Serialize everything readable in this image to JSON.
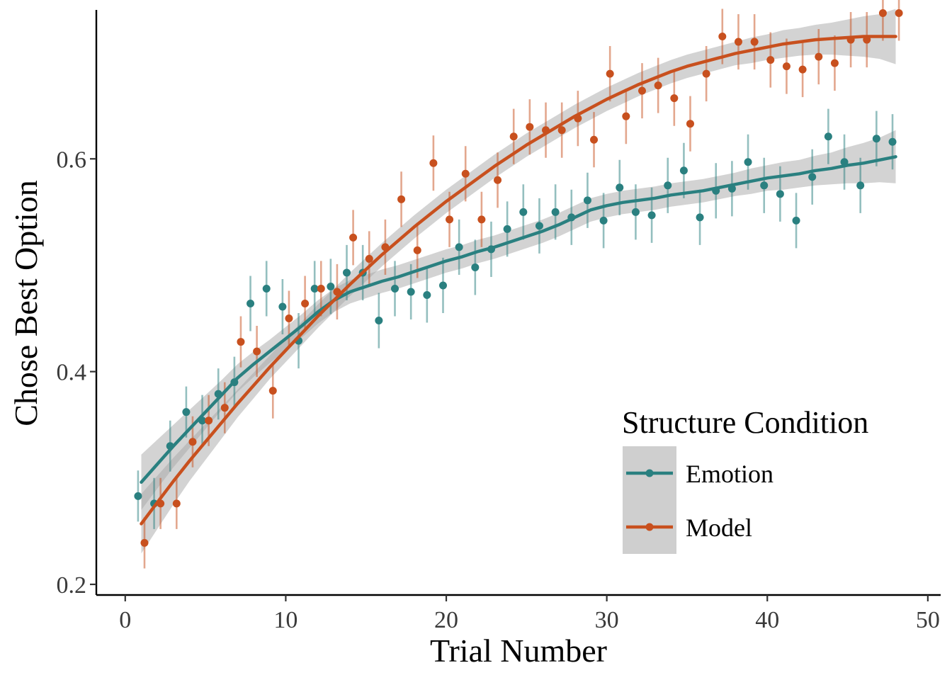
{
  "chart_data": {
    "type": "scatter",
    "title": "",
    "xlabel": "Trial Number",
    "ylabel": "Chose Best Option",
    "xlim": [
      -1.8,
      50.8
    ],
    "ylim": [
      0.19,
      0.74
    ],
    "x_ticks": [
      0,
      10,
      20,
      30,
      40,
      50
    ],
    "x_tick_labels": [
      "0",
      "10",
      "20",
      "30",
      "40",
      "50"
    ],
    "y_ticks": [
      0.2,
      0.4,
      0.6
    ],
    "y_tick_labels": [
      "0.2",
      "0.4",
      "0.6"
    ],
    "grid": false,
    "legend": {
      "title": "Structure Condition",
      "position": "bottom-right"
    },
    "series": [
      {
        "name": "Emotion",
        "color": "#2a8080",
        "x": [
          1,
          2,
          3,
          4,
          5,
          6,
          7,
          8,
          9,
          10,
          11,
          12,
          13,
          14,
          15,
          16,
          17,
          18,
          19,
          20,
          21,
          22,
          23,
          24,
          25,
          26,
          27,
          28,
          29,
          30,
          31,
          32,
          33,
          34,
          35,
          36,
          37,
          38,
          39,
          40,
          41,
          42,
          43,
          44,
          45,
          46,
          47,
          48
        ],
        "y": [
          0.283,
          0.276,
          0.33,
          0.362,
          0.354,
          0.379,
          0.39,
          0.464,
          0.478,
          0.461,
          0.429,
          0.478,
          0.48,
          0.493,
          0.493,
          0.448,
          0.478,
          0.475,
          0.472,
          0.481,
          0.517,
          0.498,
          0.515,
          0.534,
          0.55,
          0.537,
          0.55,
          0.545,
          0.561,
          0.542,
          0.573,
          0.55,
          0.547,
          0.575,
          0.589,
          0.545,
          0.57,
          0.572,
          0.597,
          0.575,
          0.567,
          0.542,
          0.583,
          0.621,
          0.597,
          0.575,
          0.619,
          0.616
        ],
        "err": [
          0.024,
          0.024,
          0.024,
          0.024,
          0.024,
          0.024,
          0.024,
          0.026,
          0.026,
          0.026,
          0.026,
          0.026,
          0.026,
          0.026,
          0.026,
          0.026,
          0.026,
          0.026,
          0.026,
          0.026,
          0.026,
          0.026,
          0.026,
          0.026,
          0.026,
          0.026,
          0.026,
          0.026,
          0.026,
          0.026,
          0.026,
          0.026,
          0.026,
          0.026,
          0.026,
          0.026,
          0.026,
          0.026,
          0.026,
          0.026,
          0.026,
          0.026,
          0.026,
          0.026,
          0.026,
          0.026,
          0.026,
          0.026
        ],
        "fit": [
          [
            1,
            0.296
          ],
          [
            2,
            0.313
          ],
          [
            3,
            0.33
          ],
          [
            4,
            0.346
          ],
          [
            5,
            0.362
          ],
          [
            6,
            0.378
          ],
          [
            7,
            0.394
          ],
          [
            8,
            0.407
          ],
          [
            9,
            0.419
          ],
          [
            10,
            0.431
          ],
          [
            11,
            0.443
          ],
          [
            12,
            0.456
          ],
          [
            13,
            0.467
          ],
          [
            14,
            0.475
          ],
          [
            15,
            0.48
          ],
          [
            16,
            0.485
          ],
          [
            17,
            0.489
          ],
          [
            18,
            0.494
          ],
          [
            19,
            0.499
          ],
          [
            20,
            0.504
          ],
          [
            21,
            0.508
          ],
          [
            22,
            0.513
          ],
          [
            23,
            0.517
          ],
          [
            24,
            0.522
          ],
          [
            25,
            0.527
          ],
          [
            26,
            0.532
          ],
          [
            27,
            0.538
          ],
          [
            28,
            0.545
          ],
          [
            29,
            0.552
          ],
          [
            30,
            0.556
          ],
          [
            31,
            0.559
          ],
          [
            32,
            0.561
          ],
          [
            33,
            0.563
          ],
          [
            34,
            0.566
          ],
          [
            35,
            0.568
          ],
          [
            36,
            0.57
          ],
          [
            37,
            0.573
          ],
          [
            38,
            0.576
          ],
          [
            39,
            0.579
          ],
          [
            40,
            0.582
          ],
          [
            41,
            0.584
          ],
          [
            42,
            0.586
          ],
          [
            43,
            0.589
          ],
          [
            44,
            0.591
          ],
          [
            45,
            0.594
          ],
          [
            46,
            0.596
          ],
          [
            47,
            0.599
          ],
          [
            48,
            0.602
          ]
        ],
        "band_halfwidth": [
          0.026,
          0.023,
          0.02,
          0.018,
          0.016,
          0.014,
          0.013,
          0.012,
          0.011,
          0.011,
          0.011,
          0.011,
          0.011,
          0.011,
          0.011,
          0.011,
          0.011,
          0.011,
          0.011,
          0.011,
          0.011,
          0.011,
          0.011,
          0.011,
          0.011,
          0.011,
          0.011,
          0.011,
          0.011,
          0.011,
          0.011,
          0.011,
          0.011,
          0.011,
          0.011,
          0.011,
          0.011,
          0.011,
          0.012,
          0.012,
          0.013,
          0.013,
          0.014,
          0.015,
          0.017,
          0.019,
          0.021,
          0.025
        ]
      },
      {
        "name": "Model",
        "color": "#c8501e",
        "x": [
          1,
          2,
          3,
          4,
          5,
          6,
          7,
          8,
          9,
          10,
          11,
          12,
          13,
          14,
          15,
          16,
          17,
          18,
          19,
          20,
          21,
          22,
          23,
          24,
          25,
          26,
          27,
          28,
          29,
          30,
          31,
          32,
          33,
          34,
          35,
          36,
          37,
          38,
          39,
          40,
          41,
          42,
          43,
          44,
          45,
          46,
          47,
          48
        ],
        "y": [
          0.239,
          0.276,
          0.276,
          0.334,
          0.354,
          0.366,
          0.428,
          0.419,
          0.382,
          0.45,
          0.464,
          0.478,
          0.475,
          0.526,
          0.506,
          0.517,
          0.562,
          0.514,
          0.596,
          0.543,
          0.586,
          0.543,
          0.58,
          0.621,
          0.63,
          0.627,
          0.627,
          0.638,
          0.618,
          0.68,
          0.64,
          0.664,
          0.669,
          0.657,
          0.633,
          0.68,
          0.715,
          0.71,
          0.71,
          0.693,
          0.687,
          0.684,
          0.696,
          0.69,
          0.712,
          0.712,
          0.737,
          0.737
        ],
        "err": [
          0.024,
          0.024,
          0.024,
          0.024,
          0.024,
          0.024,
          0.024,
          0.024,
          0.026,
          0.026,
          0.026,
          0.026,
          0.026,
          0.026,
          0.026,
          0.026,
          0.026,
          0.026,
          0.026,
          0.026,
          0.026,
          0.026,
          0.026,
          0.026,
          0.026,
          0.026,
          0.026,
          0.026,
          0.026,
          0.026,
          0.026,
          0.026,
          0.026,
          0.026,
          0.026,
          0.026,
          0.026,
          0.026,
          0.026,
          0.026,
          0.026,
          0.026,
          0.026,
          0.026,
          0.026,
          0.026,
          0.026,
          0.026
        ],
        "fit": [
          [
            1,
            0.257
          ],
          [
            2,
            0.277
          ],
          [
            3,
            0.297
          ],
          [
            4,
            0.316
          ],
          [
            5,
            0.334
          ],
          [
            6,
            0.352
          ],
          [
            7,
            0.37
          ],
          [
            8,
            0.387
          ],
          [
            9,
            0.404
          ],
          [
            10,
            0.42
          ],
          [
            11,
            0.436
          ],
          [
            12,
            0.452
          ],
          [
            13,
            0.467
          ],
          [
            14,
            0.482
          ],
          [
            15,
            0.496
          ],
          [
            16,
            0.51
          ],
          [
            17,
            0.523
          ],
          [
            18,
            0.536
          ],
          [
            19,
            0.548
          ],
          [
            20,
            0.56
          ],
          [
            21,
            0.571
          ],
          [
            22,
            0.582
          ],
          [
            23,
            0.593
          ],
          [
            24,
            0.603
          ],
          [
            25,
            0.613
          ],
          [
            26,
            0.622
          ],
          [
            27,
            0.631
          ],
          [
            28,
            0.64
          ],
          [
            29,
            0.648
          ],
          [
            30,
            0.656
          ],
          [
            31,
            0.663
          ],
          [
            32,
            0.67
          ],
          [
            33,
            0.676
          ],
          [
            34,
            0.682
          ],
          [
            35,
            0.687
          ],
          [
            36,
            0.691
          ],
          [
            37,
            0.695
          ],
          [
            38,
            0.699
          ],
          [
            39,
            0.702
          ],
          [
            40,
            0.705
          ],
          [
            41,
            0.708
          ],
          [
            42,
            0.71
          ],
          [
            43,
            0.712
          ],
          [
            44,
            0.713
          ],
          [
            45,
            0.714
          ],
          [
            46,
            0.715
          ],
          [
            47,
            0.715
          ],
          [
            48,
            0.715
          ]
        ],
        "band_halfwidth": [
          0.028,
          0.025,
          0.022,
          0.019,
          0.017,
          0.015,
          0.013,
          0.012,
          0.011,
          0.011,
          0.011,
          0.011,
          0.011,
          0.011,
          0.011,
          0.011,
          0.011,
          0.011,
          0.011,
          0.011,
          0.011,
          0.011,
          0.011,
          0.011,
          0.011,
          0.011,
          0.011,
          0.011,
          0.011,
          0.011,
          0.011,
          0.011,
          0.011,
          0.011,
          0.011,
          0.011,
          0.011,
          0.011,
          0.012,
          0.012,
          0.013,
          0.013,
          0.014,
          0.015,
          0.017,
          0.019,
          0.021,
          0.026
        ]
      }
    ]
  }
}
